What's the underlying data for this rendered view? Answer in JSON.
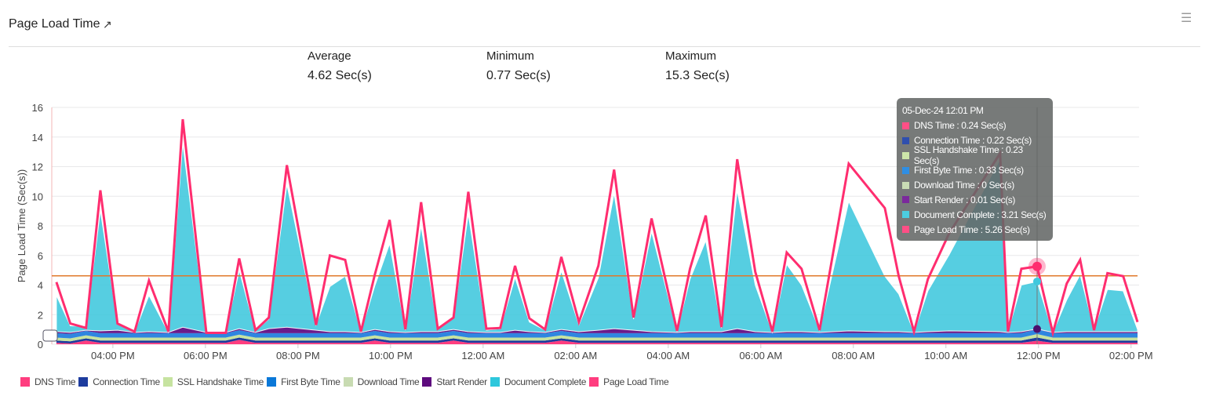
{
  "header": {
    "title": "Page Load Time",
    "menu_icon": "hamburger-icon",
    "external_icon": "external-link-icon"
  },
  "stats": [
    {
      "label": "Average",
      "value": "4.62 Sec(s)"
    },
    {
      "label": "Minimum",
      "value": "0.77 Sec(s)"
    },
    {
      "label": "Maximum",
      "value": "15.3 Sec(s)"
    }
  ],
  "tooltip": {
    "title": "05-Dec-24 12:01 PM",
    "rows": [
      {
        "text": "DNS Time : 0.24 Sec(s)",
        "color": "#ff4f86"
      },
      {
        "text": "Connection Time : 0.22 Sec(s)",
        "color": "#2f4fae"
      },
      {
        "text": "SSL Handshake Time : 0.23 Sec(s)",
        "color": "#cde6a9"
      },
      {
        "text": "First Byte Time : 0.33 Sec(s)",
        "color": "#2f8ee3"
      },
      {
        "text": "Download Time : 0 Sec(s)",
        "color": "#c9dcb5"
      },
      {
        "text": "Start Render : 0.01 Sec(s)",
        "color": "#7b2a9c"
      },
      {
        "text": "Document Complete : 3.21 Sec(s)",
        "color": "#4ccde0"
      },
      {
        "text": "Page Load Time : 5.26 Sec(s)",
        "color": "#ff4f86"
      }
    ]
  },
  "chart_data": {
    "type": "area",
    "ylabel": "Page Load Time (Sec(s))",
    "xlabel": "",
    "ylim": [
      0,
      16
    ],
    "y_ticks": [
      0,
      2,
      4,
      6,
      8,
      10,
      12,
      14,
      16
    ],
    "x_unit": "hours since 00:00 on 04-Dec-24",
    "x_ticks": [
      {
        "x": 16,
        "label": "04:00 PM"
      },
      {
        "x": 18,
        "label": "06:00 PM"
      },
      {
        "x": 20,
        "label": "08:00 PM"
      },
      {
        "x": 22,
        "label": "10:00 PM"
      },
      {
        "x": 24,
        "label": "12:00 AM"
      },
      {
        "x": 26,
        "label": "02:00 AM"
      },
      {
        "x": 28,
        "label": "04:00 AM"
      },
      {
        "x": 30,
        "label": "06:00 AM"
      },
      {
        "x": 32,
        "label": "08:00 AM"
      },
      {
        "x": 34,
        "label": "10:00 AM"
      },
      {
        "x": 36,
        "label": "12:00 PM"
      },
      {
        "x": 38,
        "label": "02:00 PM"
      }
    ],
    "xlim": [
      14.68,
      38.14
    ],
    "average_line": 4.62,
    "highlight_index": 56,
    "x": [
      14.78,
      15.08,
      15.42,
      15.73,
      16.1,
      16.47,
      16.78,
      17.2,
      17.51,
      18.02,
      18.44,
      18.73,
      19.08,
      19.37,
      19.76,
      20.39,
      20.69,
      21.02,
      21.36,
      21.66,
      21.98,
      22.32,
      22.66,
      23.02,
      23.36,
      23.68,
      24.07,
      24.37,
      24.69,
      25.0,
      25.34,
      25.69,
      26.07,
      26.49,
      26.83,
      27.25,
      27.64,
      28.19,
      28.47,
      28.81,
      29.15,
      29.49,
      29.88,
      30.25,
      30.56,
      30.88,
      31.27,
      31.9,
      32.68,
      32.98,
      33.31,
      33.61,
      34.07,
      35.17,
      35.34,
      35.63,
      35.97,
      36.31,
      36.61,
      36.9,
      37.2,
      37.49,
      37.83,
      38.14
    ],
    "stacked_series": [
      {
        "name": "DNS Time",
        "color": "#ff3d7f",
        "values": [
          0.1,
          0.05,
          0.25,
          0.1,
          0.1,
          0.1,
          0.1,
          0.1,
          0.1,
          0.1,
          0.1,
          0.3,
          0.1,
          0.1,
          0.1,
          0.1,
          0.1,
          0.1,
          0.1,
          0.25,
          0.1,
          0.1,
          0.1,
          0.1,
          0.25,
          0.1,
          0.1,
          0.1,
          0.1,
          0.1,
          0.1,
          0.25,
          0.1,
          0.1,
          0.1,
          0.1,
          0.1,
          0.1,
          0.1,
          0.1,
          0.1,
          0.1,
          0.1,
          0.1,
          0.1,
          0.1,
          0.1,
          0.1,
          0.1,
          0.1,
          0.1,
          0.1,
          0.1,
          0.1,
          0.1,
          0.1,
          0.24,
          0.1,
          0.1,
          0.1,
          0.1,
          0.1,
          0.1,
          0.1
        ]
      },
      {
        "name": "Connection Time",
        "color": "#1d3c9e",
        "values": [
          0.15,
          0.15,
          0.15,
          0.15,
          0.15,
          0.15,
          0.15,
          0.15,
          0.15,
          0.15,
          0.15,
          0.15,
          0.15,
          0.15,
          0.15,
          0.15,
          0.15,
          0.15,
          0.15,
          0.15,
          0.15,
          0.15,
          0.15,
          0.15,
          0.15,
          0.15,
          0.15,
          0.15,
          0.15,
          0.15,
          0.15,
          0.15,
          0.15,
          0.15,
          0.15,
          0.15,
          0.15,
          0.15,
          0.15,
          0.15,
          0.15,
          0.15,
          0.15,
          0.15,
          0.15,
          0.15,
          0.15,
          0.15,
          0.15,
          0.15,
          0.15,
          0.15,
          0.15,
          0.15,
          0.15,
          0.15,
          0.22,
          0.15,
          0.15,
          0.15,
          0.15,
          0.15,
          0.15,
          0.15
        ]
      },
      {
        "name": "SSL Handshake Time",
        "color": "#c6e3a0",
        "values": [
          0.2,
          0.2,
          0.2,
          0.2,
          0.2,
          0.2,
          0.2,
          0.2,
          0.2,
          0.2,
          0.2,
          0.2,
          0.2,
          0.2,
          0.2,
          0.2,
          0.2,
          0.2,
          0.2,
          0.2,
          0.2,
          0.2,
          0.2,
          0.2,
          0.2,
          0.2,
          0.2,
          0.2,
          0.2,
          0.2,
          0.2,
          0.2,
          0.2,
          0.2,
          0.2,
          0.2,
          0.2,
          0.2,
          0.2,
          0.2,
          0.2,
          0.2,
          0.2,
          0.2,
          0.2,
          0.2,
          0.2,
          0.2,
          0.2,
          0.2,
          0.2,
          0.2,
          0.2,
          0.2,
          0.2,
          0.2,
          0.23,
          0.2,
          0.2,
          0.2,
          0.2,
          0.2,
          0.2,
          0.2
        ]
      },
      {
        "name": "First Byte Time",
        "color": "#2f86e0",
        "values": [
          0.3,
          0.3,
          0.3,
          0.3,
          0.3,
          0.3,
          0.3,
          0.3,
          0.3,
          0.3,
          0.3,
          0.3,
          0.3,
          0.3,
          0.3,
          0.3,
          0.3,
          0.3,
          0.3,
          0.3,
          0.3,
          0.3,
          0.3,
          0.3,
          0.3,
          0.3,
          0.3,
          0.3,
          0.3,
          0.3,
          0.3,
          0.3,
          0.3,
          0.3,
          0.3,
          0.3,
          0.3,
          0.3,
          0.3,
          0.3,
          0.3,
          0.3,
          0.3,
          0.3,
          0.3,
          0.3,
          0.3,
          0.3,
          0.3,
          0.3,
          0.3,
          0.3,
          0.3,
          0.3,
          0.3,
          0.3,
          0.33,
          0.3,
          0.3,
          0.3,
          0.3,
          0.3,
          0.3,
          0.3
        ]
      },
      {
        "name": "Download Time",
        "color": "#c8dbb2",
        "values": [
          0,
          0,
          0,
          0,
          0,
          0,
          0,
          0,
          0,
          0,
          0,
          0,
          0,
          0,
          0,
          0,
          0,
          0,
          0,
          0,
          0,
          0,
          0,
          0,
          0,
          0,
          0,
          0,
          0,
          0,
          0,
          0,
          0,
          0,
          0,
          0,
          0,
          0,
          0,
          0,
          0,
          0,
          0,
          0,
          0,
          0,
          0,
          0,
          0,
          0,
          0,
          0,
          0,
          0,
          0,
          0,
          0,
          0,
          0,
          0,
          0,
          0,
          0,
          0
        ]
      },
      {
        "name": "Start Render",
        "color": "#6a1b8a",
        "values": [
          0.1,
          0.1,
          0.05,
          0.15,
          0.2,
          0.05,
          0.1,
          0.05,
          0.4,
          0.05,
          0.05,
          0.1,
          0.05,
          0.3,
          0.4,
          0.2,
          0.1,
          0.1,
          0.05,
          0.1,
          0.1,
          0.05,
          0.1,
          0.1,
          0.1,
          0.1,
          0.05,
          0.05,
          0.2,
          0.1,
          0.05,
          0.1,
          0.1,
          0.2,
          0.3,
          0.2,
          0.1,
          0.05,
          0.1,
          0.1,
          0.1,
          0.3,
          0.1,
          0.05,
          0.1,
          0.1,
          0.05,
          0.15,
          0.1,
          0.1,
          0.05,
          0.1,
          0.15,
          0.1,
          0.05,
          0.1,
          0.01,
          0.05,
          0.1,
          0.1,
          0.1,
          0.1,
          0.1,
          0.1
        ]
      },
      {
        "name": "Document Complete",
        "color": "#3fc8dd",
        "values": [
          2.45,
          0.45,
          0.25,
          8.15,
          0.45,
          0.05,
          2.45,
          0,
          12.45,
          0,
          0,
          3.95,
          0.1,
          0.65,
          9.65,
          0.35,
          3.05,
          3.75,
          0.05,
          2.95,
          5.95,
          0.15,
          7.15,
          0.15,
          0.75,
          7.95,
          0.15,
          0.25,
          3.55,
          0.65,
          0.15,
          3.95,
          0.45,
          3.55,
          9.15,
          0.75,
          6.75,
          0.05,
          3.55,
          6.15,
          0.25,
          9.35,
          3.15,
          0,
          4.55,
          3.15,
          0.15,
          8.75,
          3.75,
          2.55,
          0,
          2.75,
          5.15,
          11.65,
          0.05,
          3.15,
          3.21,
          0,
          2.15,
          3.85,
          0.15,
          2.85,
          2.75,
          0.15
        ]
      }
    ],
    "line_series": {
      "name": "Page Load Time",
      "color": "#ff2d6f",
      "values": [
        4.2,
        1.4,
        1.1,
        10.4,
        1.4,
        0.85,
        4.3,
        0.85,
        15.2,
        0.77,
        0.77,
        5.8,
        0.95,
        1.8,
        12.1,
        1.3,
        6.0,
        5.7,
        0.85,
        4.7,
        8.4,
        1.0,
        9.6,
        1.05,
        1.8,
        10.3,
        1.05,
        1.1,
        5.3,
        1.75,
        1.0,
        5.9,
        1.5,
        5.3,
        11.8,
        1.8,
        8.5,
        0.9,
        5.1,
        8.7,
        1.15,
        12.5,
        4.9,
        0.85,
        6.2,
        5.1,
        0.95,
        12.2,
        9.2,
        4.6,
        0.85,
        4.4,
        7.5,
        12.9,
        0.85,
        5.1,
        5.26,
        0.77,
        4.1,
        5.7,
        0.95,
        4.8,
        4.6,
        1.5
      ]
    },
    "legend": [
      {
        "label": "DNS Time",
        "color": "#ff3d7f"
      },
      {
        "label": "Connection Time",
        "color": "#1d3c9e"
      },
      {
        "label": "SSL Handshake Time",
        "color": "#c6e3a0"
      },
      {
        "label": "First Byte Time",
        "color": "#0a78d8"
      },
      {
        "label": "Download Time",
        "color": "#c8dbb2"
      },
      {
        "label": "Start Render",
        "color": "#5e0a7e"
      },
      {
        "label": "Document Complete",
        "color": "#2ec7dc"
      },
      {
        "label": "Page Load Time",
        "color": "#ff3d7f"
      }
    ],
    "legend_position": "bottom-left"
  }
}
